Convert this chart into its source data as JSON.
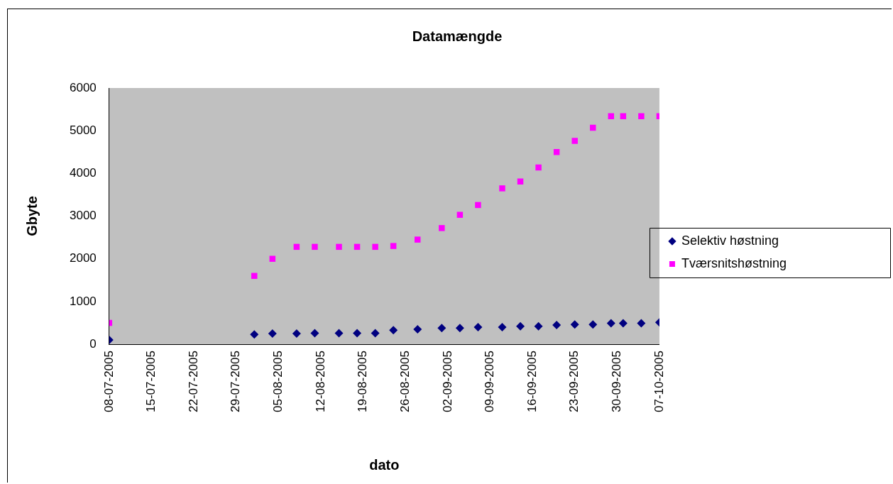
{
  "chart_data": {
    "type": "scatter",
    "title": "Datamængde",
    "xlabel": "dato",
    "ylabel": "Gbyte",
    "x": [
      "2005-07-08",
      "2005-08-01",
      "2005-08-04",
      "2005-08-08",
      "2005-08-11",
      "2005-08-15",
      "2005-08-18",
      "2005-08-21",
      "2005-08-24",
      "2005-08-28",
      "2005-09-01",
      "2005-09-04",
      "2005-09-07",
      "2005-09-11",
      "2005-09-14",
      "2005-09-17",
      "2005-09-20",
      "2005-09-23",
      "2005-09-26",
      "2005-09-29",
      "2005-10-01",
      "2005-10-04",
      "2005-10-07"
    ],
    "series": [
      {
        "name": "Selektiv høstning",
        "color": "#000080",
        "marker": "diamond",
        "values": [
          100,
          230,
          250,
          250,
          260,
          260,
          260,
          260,
          330,
          350,
          380,
          380,
          400,
          400,
          420,
          420,
          450,
          460,
          460,
          490,
          490,
          490,
          510
        ]
      },
      {
        "name": "Tværsnitshøstning",
        "color": "#ff00ff",
        "marker": "square",
        "values": [
          500,
          1600,
          2000,
          2280,
          2280,
          2280,
          2280,
          2280,
          2300,
          2450,
          2720,
          3030,
          3260,
          3650,
          3810,
          4140,
          4500,
          4760,
          5070,
          5340,
          5340,
          5340,
          5340
        ]
      }
    ],
    "xlim": [
      "2005-07-08",
      "2005-10-07"
    ],
    "xticks": [
      {
        "value": "2005-07-08",
        "label": "08-07-2005"
      },
      {
        "value": "2005-07-15",
        "label": "15-07-2005"
      },
      {
        "value": "2005-07-22",
        "label": "22-07-2005"
      },
      {
        "value": "2005-07-29",
        "label": "29-07-2005"
      },
      {
        "value": "2005-08-05",
        "label": "05-08-2005"
      },
      {
        "value": "2005-08-12",
        "label": "12-08-2005"
      },
      {
        "value": "2005-08-19",
        "label": "19-08-2005"
      },
      {
        "value": "2005-08-26",
        "label": "26-08-2005"
      },
      {
        "value": "2005-09-02",
        "label": "02-09-2005"
      },
      {
        "value": "2005-09-09",
        "label": "09-09-2005"
      },
      {
        "value": "2005-09-16",
        "label": "16-09-2005"
      },
      {
        "value": "2005-09-23",
        "label": "23-09-2005"
      },
      {
        "value": "2005-09-30",
        "label": "30-09-2005"
      },
      {
        "value": "2005-10-07",
        "label": "07-10-2005"
      }
    ],
    "ylim": [
      0,
      6000
    ],
    "yticks": [
      0,
      1000,
      2000,
      3000,
      4000,
      5000,
      6000
    ],
    "grid": false,
    "legend": "right"
  }
}
